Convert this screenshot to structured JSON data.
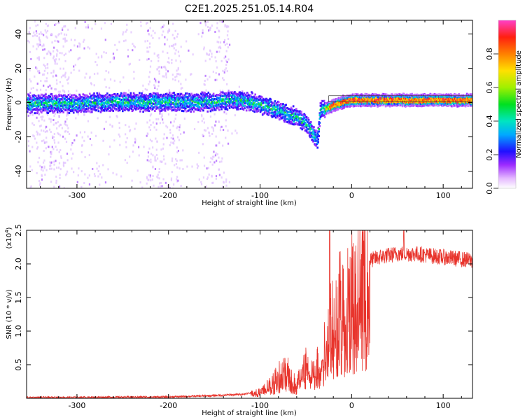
{
  "title": "C2E1.2025.251.05.14.R04",
  "chart_data": [
    {
      "type": "heatmap",
      "xlabel": "Height of straight line (km)",
      "ylabel": "Frequency (Hz)",
      "xlim": [
        -355,
        132
      ],
      "ylim": [
        -50,
        48
      ],
      "xticks": [
        -300,
        -200,
        -100,
        0,
        100
      ],
      "xtick_labels": [
        "-300",
        "-200",
        "-100",
        "0",
        "100"
      ],
      "yticks": [
        -40,
        -20,
        0,
        20,
        40
      ],
      "ytick_labels": [
        "-40",
        "-20",
        "0",
        "20",
        "40"
      ],
      "colorbar": {
        "label": "Normalized spectral amplitude",
        "range": [
          0.0,
          1.0
        ],
        "ticks": [
          0.0,
          0.2,
          0.4,
          0.6,
          0.8
        ],
        "tick_labels": [
          "0.0",
          "0.2",
          "0.4",
          "0.6",
          "0.8"
        ]
      },
      "ridge": {
        "x": [
          -355,
          -300,
          -250,
          -200,
          -150,
          -130,
          -110,
          -90,
          -80,
          -70,
          -60,
          -50,
          -45,
          -40,
          -38,
          -35,
          -30,
          -20,
          -10,
          0,
          20,
          50,
          100,
          132
        ],
        "y": [
          0,
          0,
          1,
          1,
          1,
          2,
          1,
          -2,
          -4,
          -6,
          -8,
          -12,
          -16,
          -20,
          -22,
          -4,
          -3,
          -1,
          1,
          2,
          2,
          2,
          2,
          2
        ]
      },
      "background_bands": [
        [
          -345,
          -310
        ],
        [
          -225,
          -185
        ],
        [
          -165,
          -135
        ]
      ]
    },
    {
      "type": "line",
      "xlabel": "Height of straight line (km)",
      "ylabel": "SNR (10 * v/v)",
      "y_multiplier": "(x10",
      "y_exponent": "4",
      "xlim": [
        -355,
        132
      ],
      "ylim": [
        0,
        2.5
      ],
      "xticks": [
        -300,
        -200,
        -100,
        0,
        100
      ],
      "xtick_labels": [
        "-300",
        "-200",
        "-100",
        "0",
        "100"
      ],
      "yticks": [
        0.5,
        1.0,
        1.5,
        2.0,
        2.5
      ],
      "ytick_labels": [
        "0.5",
        "1.0",
        "1.5",
        "2.0",
        "2.5"
      ],
      "color": "#e8342c",
      "envelope": {
        "x": [
          -355,
          -200,
          -150,
          -120,
          -100,
          -90,
          -80,
          -70,
          -65,
          -60,
          -55,
          -50,
          -45,
          -40,
          -35,
          -30,
          -27,
          -25,
          -22,
          -20,
          -15,
          -10,
          0,
          10,
          20,
          30,
          50,
          70,
          100,
          132
        ],
        "y": [
          0.01,
          0.02,
          0.04,
          0.06,
          0.1,
          0.2,
          0.35,
          0.45,
          0.3,
          0.2,
          0.45,
          0.55,
          0.45,
          0.4,
          0.6,
          0.8,
          1.0,
          1.15,
          1.2,
          1.35,
          1.4,
          1.5,
          1.75,
          1.95,
          2.05,
          2.1,
          2.15,
          2.15,
          2.1,
          2.05
        ]
      },
      "spikes": [
        {
          "x": -24,
          "y": 2.5
        },
        {
          "x": 57,
          "y": 2.5
        }
      ]
    }
  ]
}
